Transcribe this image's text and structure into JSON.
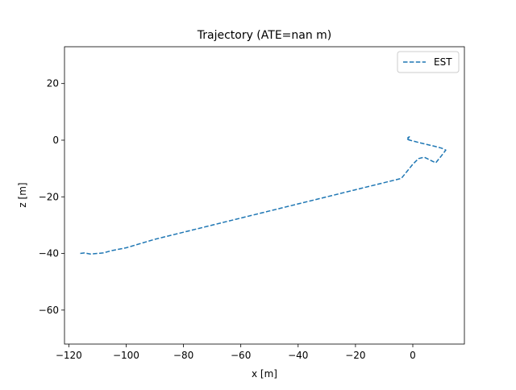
{
  "chart_data": {
    "type": "line",
    "title": "Trajectory (ATE=nan m)",
    "xlabel": "x [m]",
    "ylabel": "z [m]",
    "xlim": [
      -121.5,
      18
    ],
    "ylim": [
      -72,
      33
    ],
    "xticks": [
      -120,
      -100,
      -80,
      -60,
      -40,
      -20,
      0
    ],
    "yticks": [
      -60,
      -40,
      -20,
      0,
      20
    ],
    "xtick_labels": [
      "−120",
      "−100",
      "−80",
      "−60",
      "−40",
      "−20",
      "0"
    ],
    "ytick_labels": [
      "−60",
      "−40",
      "−20",
      "0",
      "20"
    ],
    "grid": false,
    "legend_position": "top-right",
    "series": [
      {
        "name": "EST",
        "color": "#1f77b4",
        "linestyle": "dashed",
        "x": [
          -116,
          -114.5,
          -112.5,
          -110,
          -108,
          -105,
          -100,
          -90,
          -80,
          -70,
          -60,
          -50,
          -40,
          -30,
          -20,
          -10,
          -4,
          -2,
          0,
          2,
          4,
          6,
          8,
          10,
          11.5,
          10,
          7,
          4,
          2,
          -1,
          -2,
          -1.2,
          -2.2,
          -1
        ],
        "y": [
          -40,
          -39.8,
          -40.2,
          -40,
          -39.8,
          -39,
          -38,
          -35,
          -32.5,
          -30,
          -27.5,
          -25,
          -22.5,
          -20,
          -17.5,
          -15,
          -13.5,
          -11,
          -8.5,
          -6.5,
          -6,
          -7,
          -8,
          -5.5,
          -3.5,
          -2.8,
          -2,
          -1.3,
          -0.8,
          0,
          0.3,
          1.2,
          0.6,
          0
        ]
      }
    ]
  }
}
